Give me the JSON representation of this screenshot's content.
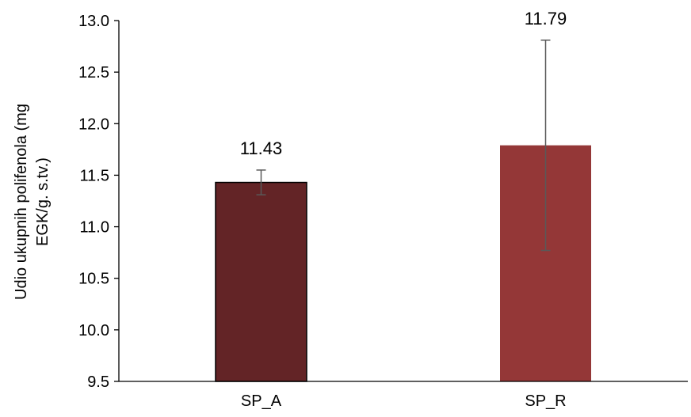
{
  "chart_data": {
    "type": "bar",
    "categories": [
      "SP_A",
      "SP_R"
    ],
    "values": [
      11.43,
      11.79
    ],
    "errors": [
      0.12,
      1.02
    ],
    "data_labels": [
      "11.43",
      "11.79"
    ],
    "ylabel_lines": [
      "Udio ukupnih polifenola  (mg",
      "EGK/g. s.tv.)"
    ],
    "ylim": [
      9.5,
      13.0
    ],
    "yticks": [
      "9.5",
      "10.0",
      "10.5",
      "11.0",
      "11.5",
      "12.0",
      "12.5",
      "13.0"
    ],
    "grid": false,
    "legend": "none",
    "colors": {
      "bars": [
        "#632426",
        "#943737"
      ],
      "bar_outline": [
        "#000000",
        "none"
      ],
      "error_bar": "#595959",
      "axis": "#000000"
    }
  }
}
